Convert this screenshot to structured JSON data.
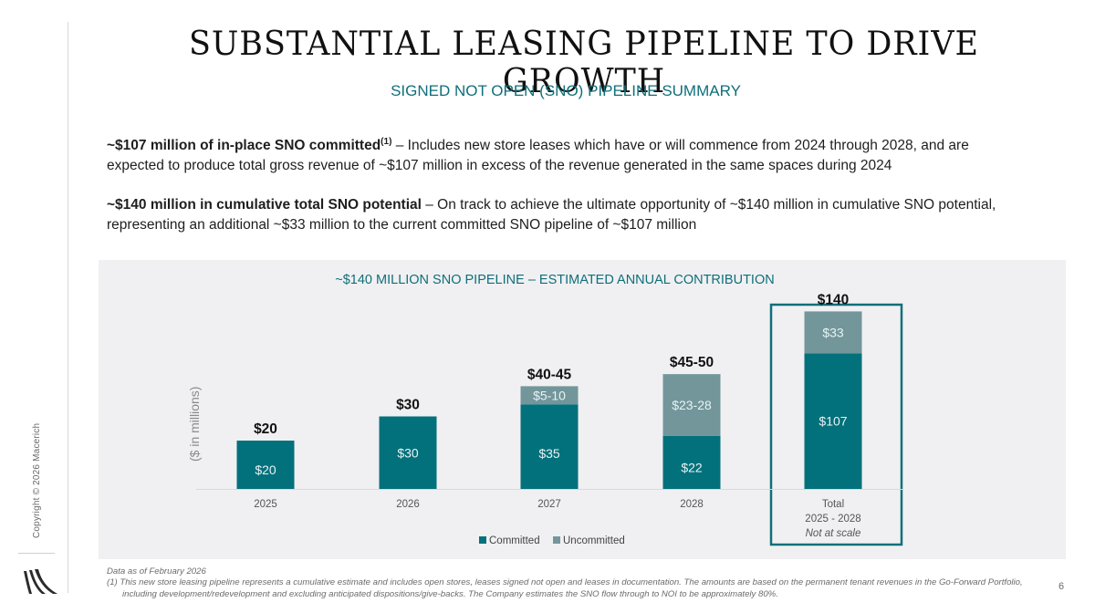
{
  "slide": {
    "title": "SUBSTANTIAL LEASING PIPELINE TO DRIVE GROWTH",
    "subtitle": "SIGNED NOT OPEN (SNO) PIPELINE SUMMARY",
    "page_number": "6",
    "copyright": "Copyright © 2026 Macerich",
    "logo_icon": "macerich-logo-icon"
  },
  "bullets": [
    {
      "bold": "~$107 million of in-place SNO committed",
      "footnote_ref": "(1)",
      "text": " – Includes new store leases which have or will commence from 2024 through 2028, and are expected to produce total gross revenue of ~$107 million in excess of the revenue generated in the same spaces during 2024"
    },
    {
      "bold": "~$140 million in cumulative total SNO potential",
      "text": " – On track to achieve the ultimate opportunity of ~$140 million in cumulative SNO potential, representing an additional ~$33 million to the current committed SNO pipeline of ~$107 million"
    }
  ],
  "footnotes": {
    "as_of": "Data as of February 2026",
    "note1": "(1)  This new store leasing pipeline represents a cumulative estimate and includes open stores, leases signed not open and leases in documentation. The amounts are based on the permanent tenant revenues in the Go-Forward Portfolio, including development/redevelopment and excluding anticipated dispositions/give-backs. The Company estimates the SNO flow through to NOI to be approximately 80%."
  },
  "colors": {
    "committed": "#03717b",
    "uncommitted": "#73969b",
    "accent": "#0f6f7a",
    "panel": "#f0f0f2"
  },
  "chart_data": {
    "type": "bar",
    "stacked": true,
    "title": "~$140 MILLION SNO PIPELINE – ESTIMATED ANNUAL CONTRIBUTION",
    "ylabel": "($ in millions)",
    "xlabel": "",
    "categories": [
      "2025",
      "2026",
      "2027",
      "2028",
      "Total\n2025 - 2028"
    ],
    "category_notes": [
      "",
      "",
      "",
      "",
      "Not at scale"
    ],
    "series": [
      {
        "name": "Committed",
        "values": [
          20,
          30,
          35,
          22,
          107
        ],
        "labels": [
          "$20",
          "$30",
          "$35",
          "$22",
          "$107"
        ]
      },
      {
        "name": "Uncommitted",
        "values": [
          0,
          0,
          7.5,
          25.5,
          33
        ],
        "labels": [
          "",
          "",
          "$5-10",
          "$23-28",
          "$33"
        ]
      }
    ],
    "totals": [
      "$20",
      "$30",
      "$40-45",
      "$45-50",
      "$140"
    ],
    "highlighted_category": "Total\n2025 - 2028",
    "legend": [
      "Committed",
      "Uncommitted"
    ],
    "legend_position": "bottom",
    "grid": false
  }
}
